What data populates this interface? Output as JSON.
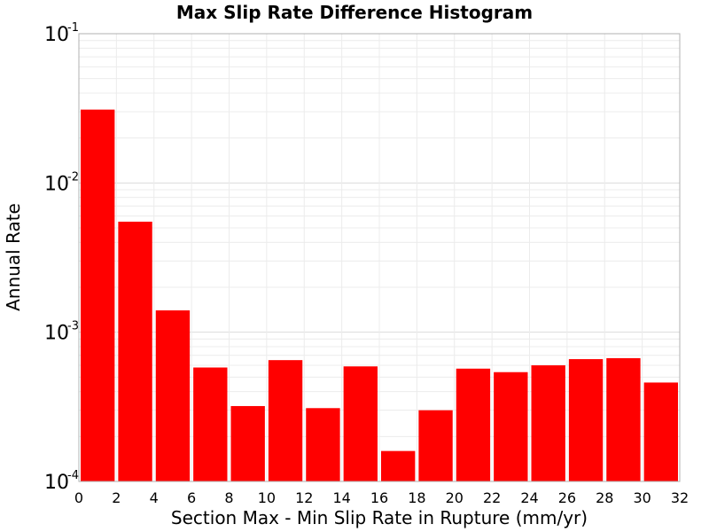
{
  "chart_data": {
    "type": "bar",
    "title": "Max Slip Rate Difference Histogram",
    "xlabel": "Section Max - Min Slip Rate in Rupture (mm/yr)",
    "ylabel": "Annual Rate",
    "yscale": "log",
    "xlim": [
      0,
      32
    ],
    "ylim": [
      0.0001,
      0.1
    ],
    "grid": true,
    "bar_color": "#ff0000",
    "x_ticks": [
      "0",
      "2",
      "4",
      "6",
      "8",
      "10",
      "12",
      "14",
      "16",
      "18",
      "20",
      "22",
      "24",
      "26",
      "28",
      "30",
      "32"
    ],
    "y_ticks": [
      {
        "base": "10",
        "exp": "-4",
        "value": 0.0001
      },
      {
        "base": "10",
        "exp": "-3",
        "value": 0.001
      },
      {
        "base": "10",
        "exp": "-2",
        "value": 0.01
      },
      {
        "base": "10",
        "exp": "-1",
        "value": 0.1
      }
    ],
    "bars": [
      {
        "x0": 0,
        "x1": 2,
        "value": 0.031
      },
      {
        "x0": 2,
        "x1": 4,
        "value": 0.0055
      },
      {
        "x0": 4,
        "x1": 6,
        "value": 0.0014
      },
      {
        "x0": 6,
        "x1": 8,
        "value": 0.00058
      },
      {
        "x0": 8,
        "x1": 10,
        "value": 0.00032
      },
      {
        "x0": 10,
        "x1": 12,
        "value": 0.00065
      },
      {
        "x0": 12,
        "x1": 14,
        "value": 0.00031
      },
      {
        "x0": 14,
        "x1": 16,
        "value": 0.00059
      },
      {
        "x0": 16,
        "x1": 18,
        "value": 0.00016
      },
      {
        "x0": 18,
        "x1": 20,
        "value": 0.0003
      },
      {
        "x0": 20,
        "x1": 22,
        "value": 0.00057
      },
      {
        "x0": 22,
        "x1": 24,
        "value": 0.00054
      },
      {
        "x0": 24,
        "x1": 26,
        "value": 0.0006
      },
      {
        "x0": 26,
        "x1": 28,
        "value": 0.00066
      },
      {
        "x0": 28,
        "x1": 30,
        "value": 0.00067
      },
      {
        "x0": 30,
        "x1": 32,
        "value": 0.00046
      }
    ]
  }
}
